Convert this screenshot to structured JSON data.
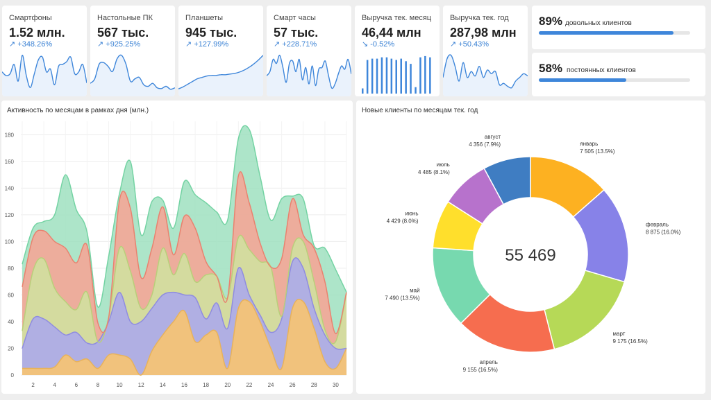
{
  "kpis": [
    {
      "title": "Смартфоны",
      "value": "1.52 млн.",
      "change": "↗ +348.26%",
      "spark_type": "line",
      "spark": [
        22,
        18,
        20,
        30,
        12,
        40,
        18,
        5,
        20,
        35,
        38,
        22,
        25,
        8,
        28,
        30,
        33,
        38,
        20,
        22,
        30,
        10
      ]
    },
    {
      "title": "Настольные ПК",
      "value": "567 тыс.",
      "change": "↗ +925.25%",
      "spark_type": "line",
      "spark": [
        12,
        18,
        38,
        40,
        35,
        28,
        45,
        50,
        38,
        15,
        18,
        20,
        10,
        8,
        12,
        6,
        5,
        8,
        4,
        6
      ]
    },
    {
      "title": "Планшеты",
      "value": "945 тыс.",
      "change": "↗ +127.99%",
      "spark_type": "line",
      "spark": [
        5,
        8,
        12,
        16,
        20,
        22,
        24,
        25,
        25,
        26,
        26,
        27,
        28,
        30,
        33,
        37,
        42,
        48,
        55
      ]
    },
    {
      "title": "Смарт часы",
      "value": "57 тыс.",
      "change": "↗ +228.71%",
      "spark_type": "line",
      "spark": [
        20,
        25,
        40,
        35,
        45,
        30,
        12,
        35,
        38,
        25,
        40,
        15,
        30,
        10,
        32,
        8,
        28,
        30,
        38,
        20,
        5,
        10,
        22,
        32,
        28,
        40,
        22
      ]
    },
    {
      "title": "Выручка тек. месяц",
      "value": "46,44 млн",
      "change": "↘ -0.52%",
      "spark_type": "bar",
      "spark": [
        8,
        52,
        54,
        54,
        56,
        56,
        54,
        52,
        54,
        50,
        46,
        10,
        56,
        58,
        56
      ]
    },
    {
      "title": "Выручка тек. год",
      "value": "287,98 млн",
      "change": "↗ +50.43%",
      "spark_type": "line",
      "spark": [
        20,
        45,
        50,
        35,
        15,
        40,
        20,
        28,
        22,
        35,
        20,
        30,
        25,
        28,
        10,
        12,
        8,
        6,
        15,
        20,
        25,
        22
      ]
    }
  ],
  "percent_stats": [
    {
      "value": "89%",
      "label": "довольных клиентов",
      "fraction": 0.89
    },
    {
      "value": "58%",
      "label": "постоянных клиентов",
      "fraction": 0.58
    }
  ],
  "area_chart": {
    "title": "Активность по месяцам в рамках дня (млн.)",
    "y_ticks": [
      "0",
      "20",
      "40",
      "60",
      "80",
      "100",
      "120",
      "140",
      "160",
      "180"
    ],
    "x_ticks": [
      "2",
      "4",
      "6",
      "8",
      "10",
      "12",
      "14",
      "16",
      "18",
      "20",
      "22",
      "24",
      "26",
      "28",
      "30"
    ],
    "colors": [
      "#fdc56a",
      "#a9a7ee",
      "#cfe3a0",
      "#f8a394",
      "#9fe0c0"
    ],
    "line_colors": [
      "#e8b25a",
      "#8f8ce0",
      "#b9cf7a",
      "#e9826f",
      "#74d3a3"
    ]
  },
  "chart_data": [
    {
      "type": "area",
      "title": "Активность по месяцам в рамках дня (млн.)",
      "x": [
        1,
        2,
        3,
        4,
        5,
        6,
        7,
        8,
        9,
        10,
        11,
        12,
        13,
        14,
        15,
        16,
        17,
        18,
        19,
        20,
        21,
        22,
        23,
        24,
        25,
        26,
        27,
        28,
        29,
        30,
        31
      ],
      "ylim": [
        0,
        190
      ],
      "stacked": true,
      "series": [
        {
          "values": [
            5,
            5,
            5,
            6,
            15,
            10,
            12,
            5,
            15,
            15,
            12,
            0,
            18,
            30,
            40,
            48,
            25,
            30,
            32,
            5,
            50,
            55,
            40,
            20,
            5,
            50,
            55,
            35,
            10,
            5,
            20
          ]
        },
        {
          "values": [
            15,
            37,
            37,
            30,
            15,
            22,
            12,
            20,
            25,
            47,
            28,
            40,
            32,
            30,
            22,
            12,
            33,
            12,
            22,
            30,
            30,
            5,
            5,
            12,
            37,
            35,
            25,
            15,
            20,
            15,
            0
          ]
        },
        {
          "values": [
            13,
            36,
            45,
            29,
            25,
            17,
            38,
            0,
            3,
            33,
            38,
            10,
            10,
            35,
            13,
            31,
            12,
            33,
            20,
            23,
            23,
            34,
            40,
            49,
            2,
            10,
            20,
            20,
            4,
            5,
            41
          ]
        },
        {
          "values": [
            33,
            25,
            21,
            35,
            40,
            35,
            35,
            14,
            0,
            36,
            47,
            23,
            35,
            31,
            15,
            28,
            40,
            10,
            0,
            0,
            46,
            35,
            14,
            0,
            43,
            37,
            5,
            25,
            36,
            6,
            1
          ]
        },
        {
          "values": [
            17,
            7,
            7,
            20,
            55,
            40,
            10,
            12,
            46,
            5,
            35,
            32,
            35,
            5,
            20,
            26,
            25,
            44,
            48,
            58,
            28,
            55,
            50,
            35,
            45,
            2,
            27,
            2,
            25,
            48,
            0
          ]
        }
      ]
    },
    {
      "type": "pie",
      "title": "Новые клиенты по месяцам тек. год",
      "total": "55 469",
      "slices": [
        {
          "label": "январь",
          "value": 7505,
          "text": "7 505 (13.5%)",
          "color": "#fdb121"
        },
        {
          "label": "февраль",
          "value": 8875,
          "text": "8 875 (16.0%)",
          "color": "#8782e8"
        },
        {
          "label": "март",
          "value": 9175,
          "text": "9 175 (16.5%)",
          "color": "#b6d957"
        },
        {
          "label": "апрель",
          "value": 9155,
          "text": "9 155 (16.5%)",
          "color": "#f66d4f"
        },
        {
          "label": "май",
          "value": 7490,
          "text": "7 490 (13.5%)",
          "color": "#77d9af"
        },
        {
          "label": "июнь",
          "value": 4429,
          "text": "4 429 (8.0%)",
          "color": "#ffdf2c"
        },
        {
          "label": "июль",
          "value": 4485,
          "text": "4 485 (8.1%)",
          "color": "#b772cc"
        },
        {
          "label": "август",
          "value": 4356,
          "text": "4 356 (7.9%)",
          "color": "#3f7dc2"
        }
      ]
    }
  ]
}
